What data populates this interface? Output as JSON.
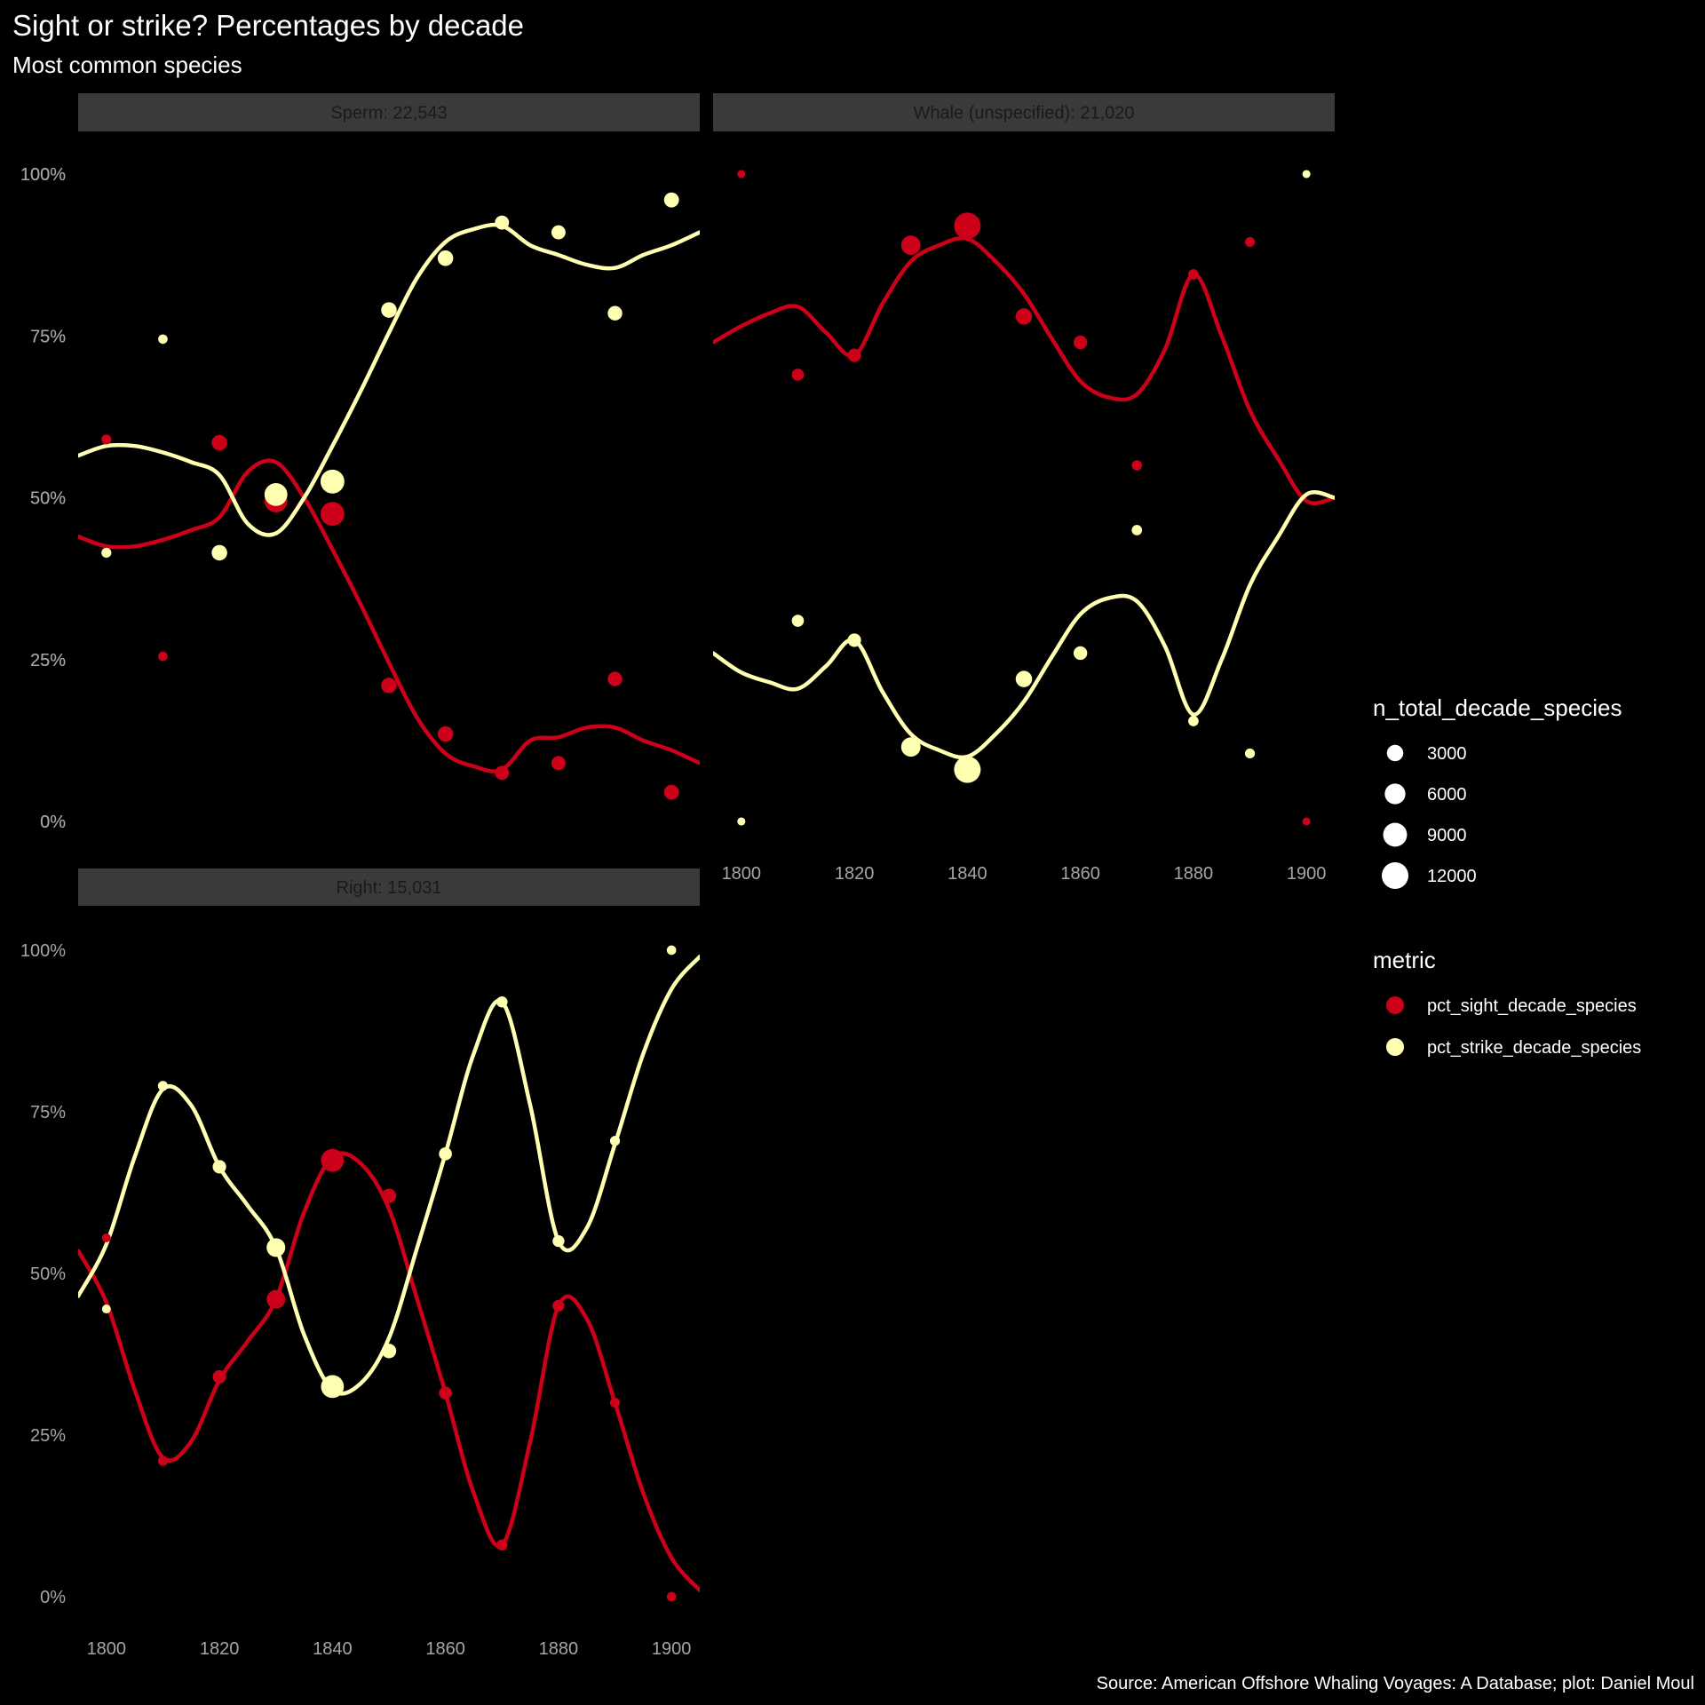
{
  "title": "Sight or strike? Percentages by decade",
  "subtitle": "Most common species",
  "caption": "Source: American Offshore Whaling Voyages: A Database; plot: Daniel Moul",
  "colors": {
    "background": "#000000",
    "strip_bg": "#3a3a3a",
    "sight": "#cc0018",
    "strike": "#ffffb2",
    "size_legend": "#ffffff",
    "tick_text": "#a6a6a6"
  },
  "legend": {
    "size_title": "n_total_decade_species",
    "size_breaks": [
      3000,
      6000,
      9000,
      12000
    ],
    "size_labels": [
      "3000",
      "6000",
      "9000",
      "12000"
    ],
    "color_title": "metric",
    "color_items": [
      {
        "label": "pct_sight_decade_species",
        "series": "sight"
      },
      {
        "label": "pct_strike_decade_species",
        "series": "strike"
      }
    ]
  },
  "chart_data": [
    {
      "type": "scatter",
      "panel": "Sperm: 22,543",
      "x": [
        1800,
        1810,
        1820,
        1830,
        1840,
        1850,
        1860,
        1870,
        1880,
        1890,
        1900
      ],
      "ylim": [
        0,
        100
      ],
      "y_ticks": [
        0,
        25,
        50,
        75,
        100
      ],
      "y_tick_labels": [
        "0%",
        "25%",
        "50%",
        "75%",
        "100%"
      ],
      "x_ticks": [
        1800,
        1820,
        1840,
        1860,
        1880,
        1900
      ],
      "x_tick_labels": [
        "1800",
        "1820",
        "1840",
        "1860",
        "1880",
        "1900"
      ],
      "x_axis_shown": false,
      "n_total": [
        400,
        300,
        2500,
        8000,
        9000,
        2500,
        2500,
        1800,
        1800,
        2000,
        2200
      ],
      "series": [
        {
          "name": "pct_sight_decade_species",
          "key": "sight",
          "values": [
            59,
            25.5,
            58.5,
            49.5,
            47.5,
            21,
            13.5,
            7.5,
            9,
            22,
            4.5
          ],
          "smooth": [
            [
              1795,
              44
            ],
            [
              1800,
              42.5
            ],
            [
              1805,
              42.5
            ],
            [
              1810,
              43.5
            ],
            [
              1815,
              45
            ],
            [
              1820,
              47
            ],
            [
              1825,
              54
            ],
            [
              1830,
              55.5
            ],
            [
              1835,
              50
            ],
            [
              1840,
              42
            ],
            [
              1845,
              33.5
            ],
            [
              1850,
              24.5
            ],
            [
              1855,
              16
            ],
            [
              1860,
              10.5
            ],
            [
              1865,
              8.5
            ],
            [
              1870,
              8
            ],
            [
              1875,
              12.5
            ],
            [
              1880,
              13
            ],
            [
              1885,
              14.5
            ],
            [
              1890,
              14.5
            ],
            [
              1895,
              12.5
            ],
            [
              1900,
              11
            ],
            [
              1905,
              9
            ]
          ]
        },
        {
          "name": "pct_strike_decade_species",
          "key": "strike",
          "values": [
            41.5,
            74.5,
            41.5,
            50.5,
            52.5,
            79,
            87,
            92.5,
            91,
            78.5,
            96
          ],
          "smooth": [
            [
              1795,
              56.5
            ],
            [
              1800,
              58
            ],
            [
              1805,
              58
            ],
            [
              1810,
              57
            ],
            [
              1815,
              55.5
            ],
            [
              1820,
              53.5
            ],
            [
              1825,
              46
            ],
            [
              1830,
              44.5
            ],
            [
              1835,
              50
            ],
            [
              1840,
              58
            ],
            [
              1845,
              66.5
            ],
            [
              1850,
              75.5
            ],
            [
              1855,
              84
            ],
            [
              1860,
              89.5
            ],
            [
              1865,
              91.5
            ],
            [
              1870,
              92
            ],
            [
              1875,
              89
            ],
            [
              1880,
              87.5
            ],
            [
              1885,
              86
            ],
            [
              1890,
              85.5
            ],
            [
              1895,
              87.5
            ],
            [
              1900,
              89
            ],
            [
              1905,
              91
            ]
          ]
        }
      ]
    },
    {
      "type": "scatter",
      "panel": "Whale (unspecified): 21,020",
      "x": [
        1800,
        1810,
        1820,
        1830,
        1840,
        1850,
        1860,
        1870,
        1880,
        1890,
        1900
      ],
      "ylim": [
        0,
        100
      ],
      "y_ticks": [
        0,
        25,
        50,
        75,
        100
      ],
      "y_tick_labels": [
        "0%",
        "25%",
        "50%",
        "75%",
        "100%"
      ],
      "x_ticks": [
        1800,
        1820,
        1840,
        1860,
        1880,
        1900
      ],
      "x_tick_labels": [
        "1800",
        "1820",
        "1840",
        "1860",
        "1880",
        "1900"
      ],
      "x_axis_shown": true,
      "n_total": [
        100,
        1000,
        1500,
        5000,
        12000,
        3000,
        1600,
        500,
        500,
        400,
        100
      ],
      "series": [
        {
          "name": "pct_sight_decade_species",
          "key": "sight",
          "values": [
            100,
            69,
            72,
            89,
            92,
            78,
            74,
            55,
            84.5,
            89.5,
            0
          ],
          "smooth": [
            [
              1795,
              74
            ],
            [
              1800,
              76.5
            ],
            [
              1805,
              78.5
            ],
            [
              1810,
              79.5
            ],
            [
              1815,
              75.5
            ],
            [
              1820,
              72
            ],
            [
              1825,
              80
            ],
            [
              1830,
              86.5
            ],
            [
              1835,
              89
            ],
            [
              1840,
              90
            ],
            [
              1845,
              86.5
            ],
            [
              1850,
              81.5
            ],
            [
              1855,
              74.5
            ],
            [
              1860,
              68
            ],
            [
              1865,
              65.5
            ],
            [
              1870,
              66
            ],
            [
              1875,
              73
            ],
            [
              1880,
              84.5
            ],
            [
              1885,
              75
            ],
            [
              1890,
              63.5
            ],
            [
              1895,
              56
            ],
            [
              1900,
              49.5
            ],
            [
              1905,
              50
            ]
          ]
        },
        {
          "name": "pct_strike_decade_species",
          "key": "strike",
          "values": [
            0,
            31,
            28,
            11.5,
            8,
            22,
            26,
            45,
            15.5,
            10.5,
            100
          ],
          "smooth": [
            [
              1795,
              26
            ],
            [
              1800,
              23
            ],
            [
              1805,
              21.5
            ],
            [
              1810,
              20.5
            ],
            [
              1815,
              24
            ],
            [
              1820,
              28
            ],
            [
              1825,
              20
            ],
            [
              1830,
              13.5
            ],
            [
              1835,
              11
            ],
            [
              1840,
              10
            ],
            [
              1845,
              13.5
            ],
            [
              1850,
              18.5
            ],
            [
              1855,
              25.5
            ],
            [
              1860,
              32
            ],
            [
              1865,
              34.5
            ],
            [
              1870,
              34
            ],
            [
              1875,
              27
            ],
            [
              1880,
              16.5
            ],
            [
              1885,
              25
            ],
            [
              1890,
              36.5
            ],
            [
              1895,
              44
            ],
            [
              1900,
              50.5
            ],
            [
              1905,
              50
            ]
          ]
        }
      ]
    },
    {
      "type": "scatter",
      "panel": "Right: 15,031",
      "x": [
        1800,
        1810,
        1820,
        1830,
        1840,
        1850,
        1860,
        1870,
        1880,
        1890,
        1900
      ],
      "ylim": [
        0,
        100
      ],
      "y_ticks": [
        0,
        25,
        50,
        75,
        100
      ],
      "y_tick_labels": [
        "0%",
        "25%",
        "50%",
        "75%",
        "100%"
      ],
      "x_ticks": [
        1800,
        1820,
        1840,
        1860,
        1880,
        1900
      ],
      "x_tick_labels": [
        "1800",
        "1820",
        "1840",
        "1860",
        "1880",
        "1900"
      ],
      "x_axis_shown": true,
      "n_total": [
        200,
        400,
        1500,
        4500,
        8000,
        2000,
        1300,
        700,
        900,
        400,
        300
      ],
      "series": [
        {
          "name": "pct_sight_decade_species",
          "key": "sight",
          "values": [
            55.5,
            21,
            34,
            46,
            67.5,
            62,
            31.5,
            8,
            45,
            30,
            0
          ],
          "smooth": [
            [
              1795,
              53.5
            ],
            [
              1800,
              45.5
            ],
            [
              1805,
              32
            ],
            [
              1810,
              21.5
            ],
            [
              1815,
              24
            ],
            [
              1820,
              33.5
            ],
            [
              1825,
              39.5
            ],
            [
              1830,
              46
            ],
            [
              1835,
              59.5
            ],
            [
              1840,
              68
            ],
            [
              1845,
              67
            ],
            [
              1850,
              60
            ],
            [
              1855,
              46
            ],
            [
              1860,
              31.5
            ],
            [
              1865,
              16
            ],
            [
              1870,
              8
            ],
            [
              1875,
              24
            ],
            [
              1880,
              45
            ],
            [
              1885,
              43
            ],
            [
              1890,
              30
            ],
            [
              1895,
              16
            ],
            [
              1900,
              6
            ],
            [
              1905,
              1
            ]
          ]
        },
        {
          "name": "pct_strike_decade_species",
          "key": "strike",
          "values": [
            44.5,
            79,
            66.5,
            54,
            32.5,
            38,
            68.5,
            92,
            55,
            70.5,
            100
          ],
          "smooth": [
            [
              1795,
              46.5
            ],
            [
              1800,
              54.5
            ],
            [
              1805,
              68
            ],
            [
              1810,
              78.5
            ],
            [
              1815,
              76
            ],
            [
              1820,
              66.5
            ],
            [
              1825,
              60.5
            ],
            [
              1830,
              54
            ],
            [
              1835,
              40.5
            ],
            [
              1840,
              32
            ],
            [
              1845,
              33
            ],
            [
              1850,
              40
            ],
            [
              1855,
              54
            ],
            [
              1860,
              68.5
            ],
            [
              1865,
              84
            ],
            [
              1870,
              92
            ],
            [
              1875,
              76
            ],
            [
              1880,
              55
            ],
            [
              1885,
              57
            ],
            [
              1890,
              70
            ],
            [
              1895,
              84
            ],
            [
              1900,
              94
            ],
            [
              1905,
              99
            ]
          ]
        }
      ]
    }
  ]
}
